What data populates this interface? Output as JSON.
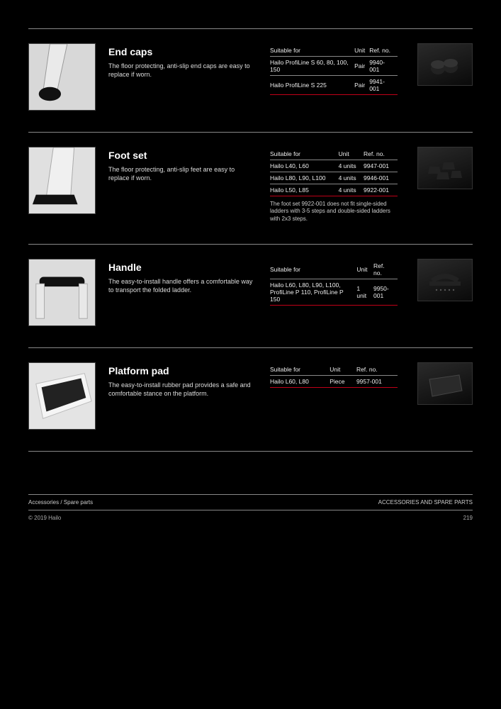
{
  "accent_color": "#c00018",
  "sections": [
    {
      "thumb": "cap",
      "title": "End caps",
      "desc": "The floor protecting, anti-slip end caps are easy to replace if worn.",
      "table": {
        "headers": [
          "Suitable for",
          "Unit",
          "Ref. no."
        ],
        "rows": [
          [
            "Hailo ProfiLine S 60, 80, 100, 150",
            "Pair",
            "9940-001"
          ],
          [
            "Hailo ProfiLine S 225",
            "Pair",
            "9941-001"
          ]
        ]
      },
      "pthumb": "caps",
      "note": ""
    },
    {
      "thumb": "foot",
      "title": "Foot set",
      "desc": "The floor protecting, anti-slip feet are easy to replace if worn.",
      "table": {
        "headers": [
          "Suitable for",
          "Unit",
          "Ref. no."
        ],
        "rows": [
          [
            "Hailo L40, L60",
            "4 units",
            "9947-001"
          ],
          [
            "Hailo L80, L90, L100",
            "4 units",
            "9946-001"
          ],
          [
            "Hailo L50, L85",
            "4 units",
            "9922-001"
          ]
        ]
      },
      "pthumb": "feet",
      "note": "The foot set 9922-001 does not fit single-sided ladders with 3-5 steps and double-sided ladders with 2x3 steps."
    },
    {
      "thumb": "handle",
      "title": "Handle",
      "desc": "The easy-to-install handle offers a comfortable way to transport the folded ladder.",
      "table": {
        "headers": [
          "Suitable for",
          "Unit",
          "Ref. no."
        ],
        "rows": [
          [
            "Hailo L60, L80, L90, L100, ProfiLine P 110, ProfiLine P 150",
            "1 unit",
            "9950-001"
          ]
        ]
      },
      "pthumb": "handle",
      "note": ""
    },
    {
      "thumb": "pad",
      "title": "Platform pad",
      "desc": "The easy-to-install rubber pad provides a safe and comfortable stance on the platform.",
      "table": {
        "headers": [
          "Suitable for",
          "Unit",
          "Ref. no."
        ],
        "rows": [
          [
            "Hailo L60, L80",
            "Piece",
            "9957-001"
          ]
        ]
      },
      "pthumb": "pad",
      "note": ""
    }
  ],
  "footer": {
    "left_top": "Accessories / Spare parts",
    "right_top": "ACCESSORIES AND SPARE PARTS",
    "left_bot": "© 2019 Hailo",
    "right_bot": "219"
  }
}
